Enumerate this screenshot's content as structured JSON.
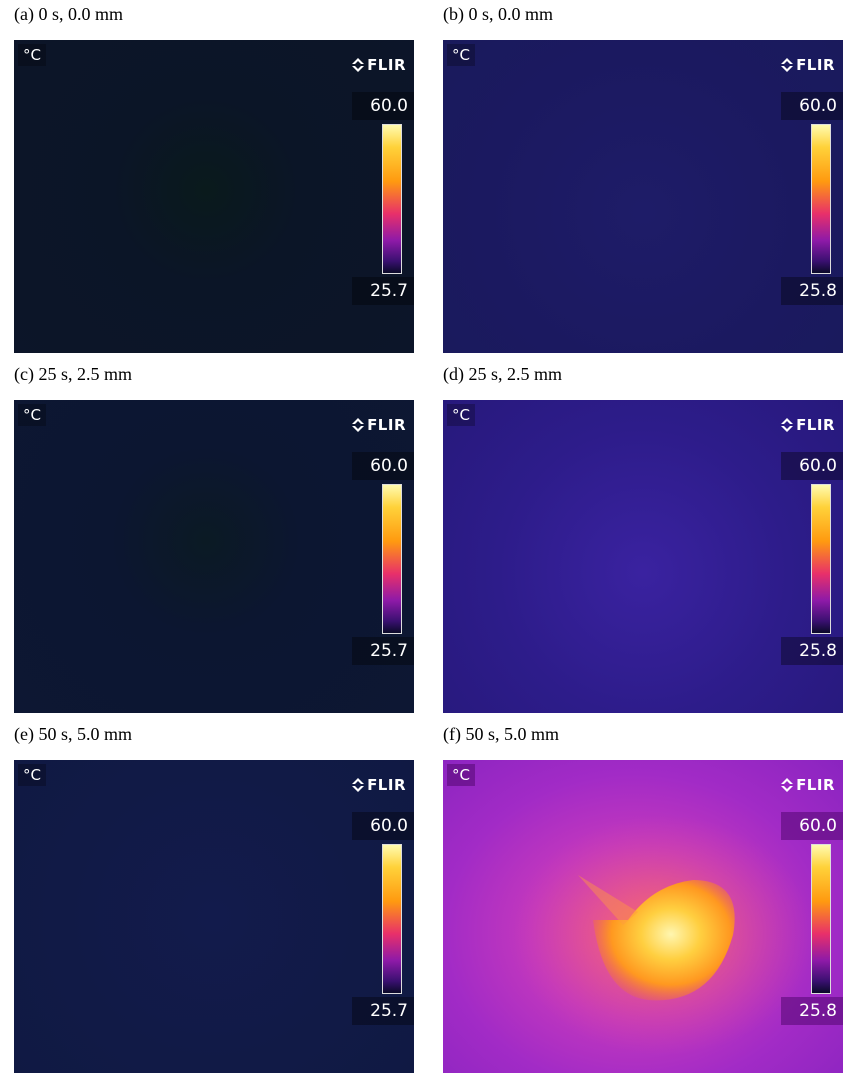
{
  "panels": [
    {
      "caption": "(a) 0 s, 0.0 mm",
      "unit": "°C",
      "brand": "FLIR",
      "max": "60.0",
      "min": "25.7"
    },
    {
      "caption": "(b) 0 s, 0.0 mm",
      "unit": "°C",
      "brand": "FLIR",
      "max": "60.0",
      "min": "25.8"
    },
    {
      "caption": "(c) 25 s, 2.5 mm",
      "unit": "°C",
      "brand": "FLIR",
      "max": "60.0",
      "min": "25.7"
    },
    {
      "caption": "(d) 25 s, 2.5 mm",
      "unit": "°C",
      "brand": "FLIR",
      "max": "60.0",
      "min": "25.8"
    },
    {
      "caption": "(e) 50 s, 5.0 mm",
      "unit": "°C",
      "brand": "FLIR",
      "max": "60.0",
      "min": "25.7"
    },
    {
      "caption": "(f) 50 s, 5.0 mm",
      "unit": "°C",
      "brand": "FLIR",
      "max": "60.0",
      "min": "25.8"
    }
  ]
}
